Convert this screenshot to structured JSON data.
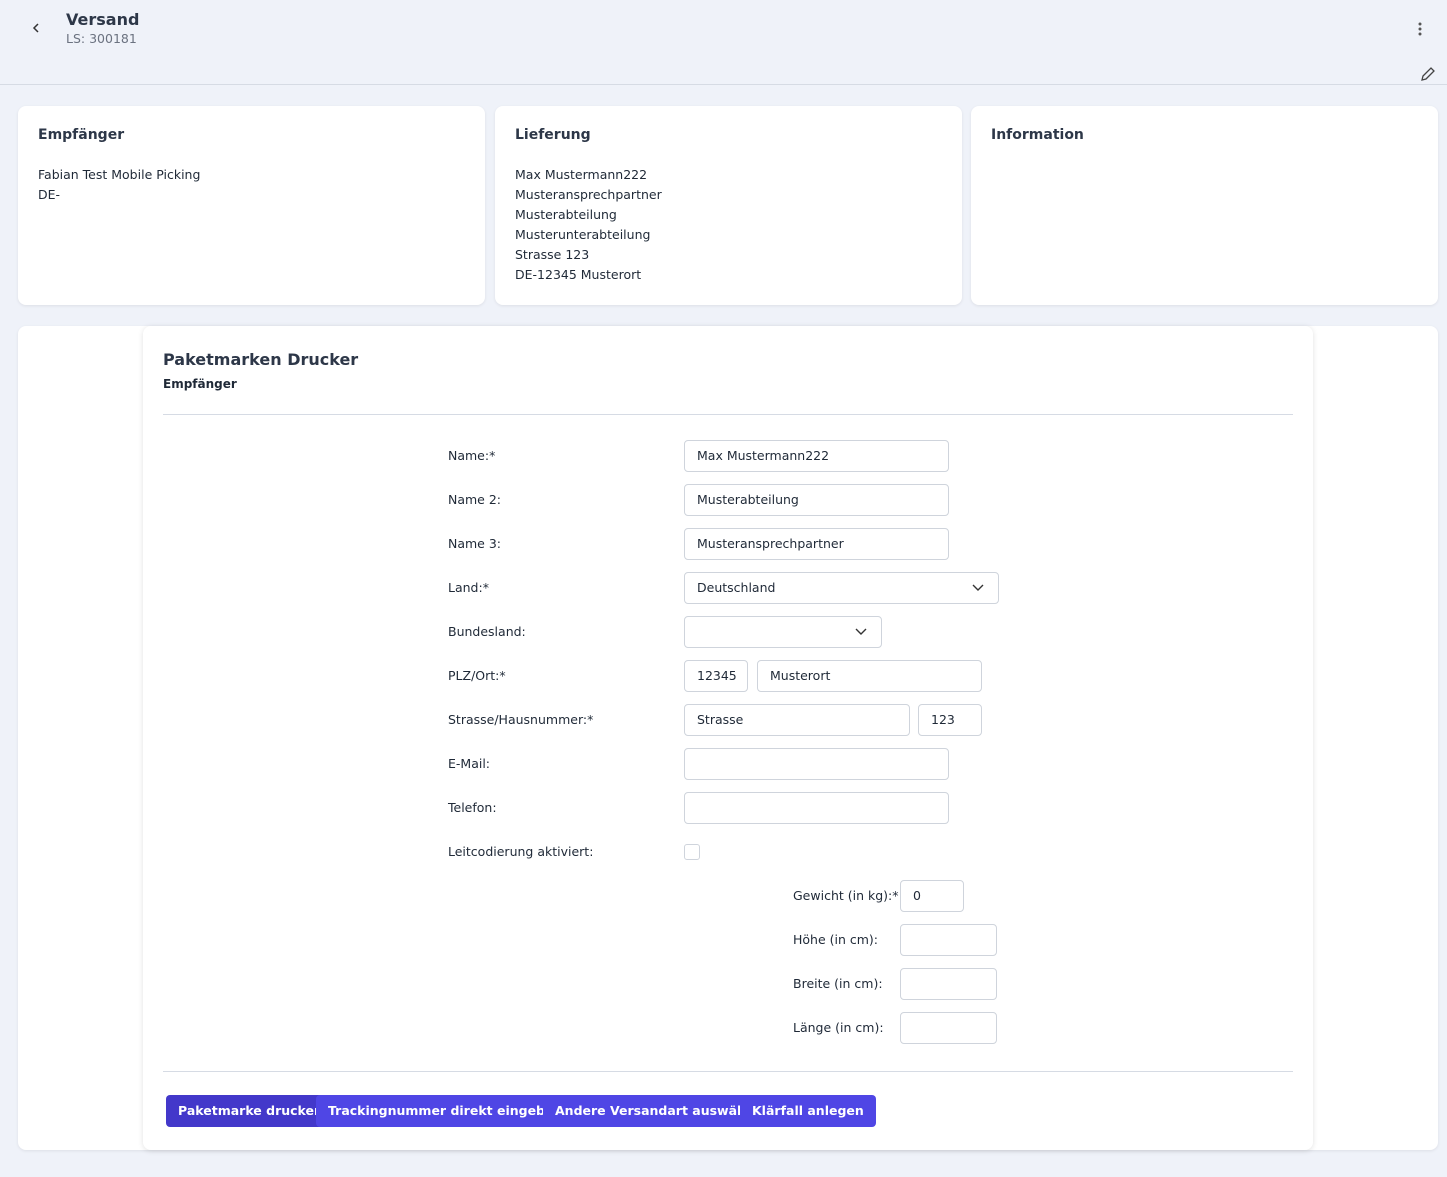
{
  "header": {
    "title": "Versand",
    "subtitle": "LS: 300181"
  },
  "cards": [
    {
      "title": "Empfänger",
      "lines": [
        "Fabian Test Mobile Picking",
        "DE-"
      ]
    },
    {
      "title": "Lieferung",
      "lines": [
        "Max Mustermann222",
        "Musteransprechpartner",
        "Musterabteilung",
        "Musterunterabteilung",
        "Strasse 123",
        "DE-12345 Musterort"
      ]
    },
    {
      "title": "Information"
    }
  ],
  "form": {
    "title": "Paketmarken Drucker",
    "subtitle": "Empfänger",
    "fields": [
      {
        "label": "Name:*",
        "values": [
          "Max Mustermann222"
        ]
      },
      {
        "label": "Name 2:",
        "values": [
          "Musterabteilung"
        ]
      },
      {
        "label": "Name 3:",
        "values": [
          "Musteransprechpartner"
        ]
      },
      {
        "label": "Land:*",
        "values": [
          "Deutschland"
        ]
      },
      {
        "label": "Bundesland:"
      },
      {
        "label": "PLZ/Ort:*",
        "values": [
          "12345",
          "Musterort"
        ]
      },
      {
        "label": "Strasse/Hausnummer:*",
        "values": [
          "Strasse",
          "123"
        ]
      },
      {
        "label": "E-Mail:"
      },
      {
        "label": "Telefon:"
      },
      {
        "label": "Leitcodierung aktiviert:"
      }
    ],
    "package": [
      {
        "label": "Gewicht (in kg):*",
        "value": "0"
      },
      {
        "label": "Höhe (in cm):"
      },
      {
        "label": "Breite (in cm):"
      },
      {
        "label": "Länge (in cm):"
      }
    ]
  },
  "buttons": [
    "Paketmarke drucken",
    "Trackingnummer direkt eingeben",
    "Andere Versandart auswählen",
    "Klärfall anlegen"
  ]
}
